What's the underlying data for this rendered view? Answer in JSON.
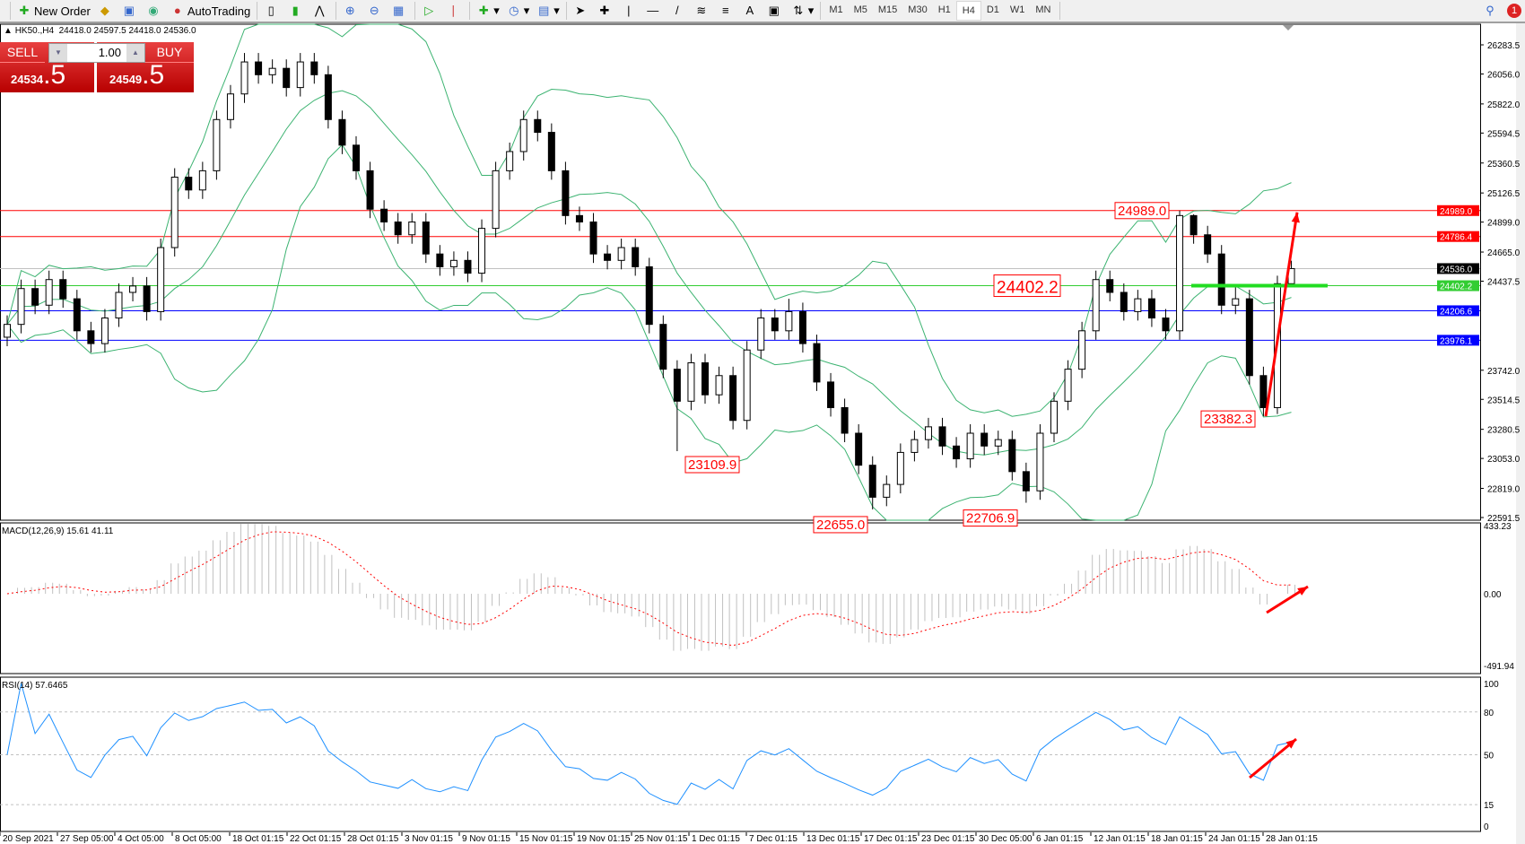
{
  "toolbar": {
    "new_order": "New Order",
    "auto_trading": "AutoTrading",
    "periods": [
      "M1",
      "M5",
      "M15",
      "M30",
      "H1",
      "H4",
      "D1",
      "W1",
      "MN"
    ],
    "active_period": "H4",
    "text_tool": "A",
    "notification_count": "1"
  },
  "header": {
    "symbol": "HK50.,H4",
    "ohlc": "24418.0 24597.5 24418.0 24536.0"
  },
  "trade_panel": {
    "sell_label": "SELL",
    "buy_label": "BUY",
    "lot": "1.00",
    "sell_price_main": "24534",
    "sell_price_big": ".5",
    "buy_price_main": "24549",
    "buy_price_big": ".5"
  },
  "colors": {
    "bullish_body": "#ffffff",
    "bearish_body": "#000000",
    "bands": "#3cb371",
    "macd_signal": "#ff0000",
    "macd_hist": "#c0c0c0",
    "rsi": "#1e90ff",
    "resistance": "#ff0000",
    "support": "#0000ff",
    "pivot": "#32cd32",
    "bid": "#c0c0c0"
  },
  "chart_data": [
    {
      "type": "candlestick",
      "title": "HK50.,H4",
      "price_axis_ticks": [
        26283.5,
        26056.0,
        25822.0,
        25594.5,
        25360.5,
        25126.5,
        24899.0,
        24665.0,
        24437.5,
        23742.0,
        23514.5,
        23280.5,
        23053.0,
        22819.0,
        22591.5
      ],
      "ylim": [
        22591.5,
        26283.5
      ],
      "time_axis_ticks": [
        "20 Sep 2021",
        "27 Sep 05:00",
        "4 Oct 05:00",
        "8 Oct 05:00",
        "18 Oct 01:15",
        "22 Oct 01:15",
        "28 Oct 01:15",
        "3 Nov 01:15",
        "9 Nov 01:15",
        "15 Nov 01:15",
        "19 Nov 01:15",
        "25 Nov 01:15",
        "1 Dec 01:15",
        "7 Dec 01:15",
        "13 Dec 01:15",
        "17 Dec 01:15",
        "23 Dec 01:15",
        "30 Dec 05:00",
        "6 Jan 01:15",
        "12 Jan 01:15",
        "18 Jan 01:15",
        "24 Jan 01:15",
        "28 Jan 01:15"
      ],
      "ohlc": [
        [
          24000,
          24170,
          23930,
          24100
        ],
        [
          24100,
          24450,
          24030,
          24380
        ],
        [
          24380,
          24450,
          24180,
          24250
        ],
        [
          24250,
          24520,
          24180,
          24450
        ],
        [
          24450,
          24520,
          24230,
          24300
        ],
        [
          24300,
          24370,
          23980,
          24050
        ],
        [
          24050,
          24120,
          23880,
          23950
        ],
        [
          23950,
          24220,
          23880,
          24150
        ],
        [
          24150,
          24420,
          24080,
          24350
        ],
        [
          24350,
          24470,
          24280,
          24400
        ],
        [
          24400,
          24470,
          24130,
          24200
        ],
        [
          24200,
          24770,
          24130,
          24700
        ],
        [
          24700,
          25320,
          24630,
          25250
        ],
        [
          25250,
          25320,
          25080,
          25150
        ],
        [
          25150,
          25370,
          25080,
          25300
        ],
        [
          25300,
          25770,
          25230,
          25700
        ],
        [
          25700,
          25970,
          25630,
          25900
        ],
        [
          25900,
          26220,
          25830,
          26150
        ],
        [
          26150,
          26220,
          25980,
          26050
        ],
        [
          26050,
          26170,
          25980,
          26100
        ],
        [
          26100,
          26170,
          25880,
          25950
        ],
        [
          25950,
          26220,
          25880,
          26150
        ],
        [
          26150,
          26220,
          25980,
          26050
        ],
        [
          26050,
          26120,
          25630,
          25700
        ],
        [
          25700,
          25770,
          25430,
          25500
        ],
        [
          25500,
          25570,
          25230,
          25300
        ],
        [
          25300,
          25370,
          24930,
          25000
        ],
        [
          25000,
          25070,
          24830,
          24900
        ],
        [
          24900,
          24970,
          24730,
          24800
        ],
        [
          24800,
          24970,
          24730,
          24900
        ],
        [
          24900,
          24970,
          24580,
          24650
        ],
        [
          24650,
          24720,
          24480,
          24550
        ],
        [
          24550,
          24670,
          24480,
          24600
        ],
        [
          24600,
          24670,
          24430,
          24500
        ],
        [
          24500,
          24920,
          24430,
          24850
        ],
        [
          24850,
          25370,
          24780,
          25300
        ],
        [
          25300,
          25520,
          25230,
          25450
        ],
        [
          25450,
          25770,
          25380,
          25700
        ],
        [
          25700,
          25770,
          25530,
          25600
        ],
        [
          25600,
          25670,
          25230,
          25300
        ],
        [
          25300,
          25370,
          24880,
          24950
        ],
        [
          24950,
          25020,
          24830,
          24900
        ],
        [
          24900,
          24970,
          24580,
          24650
        ],
        [
          24650,
          24720,
          24530,
          24600
        ],
        [
          24600,
          24770,
          24530,
          24700
        ],
        [
          24700,
          24770,
          24480,
          24550
        ],
        [
          24550,
          24620,
          24030,
          24100
        ],
        [
          24100,
          24170,
          23680,
          23750
        ],
        [
          23750,
          23820,
          23109.9,
          23500
        ],
        [
          23500,
          23870,
          23430,
          23800
        ],
        [
          23800,
          23870,
          23480,
          23550
        ],
        [
          23550,
          23770,
          23480,
          23700
        ],
        [
          23700,
          23770,
          23280,
          23350
        ],
        [
          23350,
          23970,
          23280,
          23900
        ],
        [
          23900,
          24220,
          23830,
          24150
        ],
        [
          24150,
          24220,
          23980,
          24050
        ],
        [
          24050,
          24300,
          23980,
          24200
        ],
        [
          24200,
          24270,
          23880,
          23950
        ],
        [
          23950,
          24020,
          23580,
          23650
        ],
        [
          23650,
          23720,
          23380,
          23450
        ],
        [
          23450,
          23520,
          23180,
          23250
        ],
        [
          23250,
          23320,
          22930,
          23000
        ],
        [
          23000,
          23070,
          22655.0,
          22750
        ],
        [
          22750,
          22920,
          22680,
          22850
        ],
        [
          22850,
          23170,
          22780,
          23100
        ],
        [
          23100,
          23270,
          23030,
          23200
        ],
        [
          23200,
          23370,
          23130,
          23300
        ],
        [
          23300,
          23370,
          23080,
          23150
        ],
        [
          23150,
          23220,
          22980,
          23050
        ],
        [
          23050,
          23320,
          22980,
          23250
        ],
        [
          23250,
          23320,
          23080,
          23150
        ],
        [
          23150,
          23270,
          23080,
          23200
        ],
        [
          23200,
          23270,
          22880,
          22950
        ],
        [
          22950,
          23020,
          22706.9,
          22800
        ],
        [
          22800,
          23320,
          22730,
          23250
        ],
        [
          23250,
          23570,
          23180,
          23500
        ],
        [
          23500,
          23820,
          23430,
          23750
        ],
        [
          23750,
          24120,
          23680,
          24050
        ],
        [
          24050,
          24520,
          23980,
          24450
        ],
        [
          24450,
          24520,
          24280,
          24350
        ],
        [
          24350,
          24420,
          24130,
          24200
        ],
        [
          24200,
          24370,
          24130,
          24300
        ],
        [
          24300,
          24370,
          24080,
          24150
        ],
        [
          24150,
          24220,
          23980,
          24050
        ],
        [
          24050,
          24989.0,
          23980,
          24950
        ],
        [
          24950,
          24960,
          24730,
          24800
        ],
        [
          24800,
          24870,
          24580,
          24650
        ],
        [
          24650,
          24720,
          24180,
          24250
        ],
        [
          24250,
          24400,
          24180,
          24300
        ],
        [
          24300,
          24370,
          23630,
          23700
        ],
        [
          23700,
          23770,
          23382.3,
          23450
        ],
        [
          23450,
          24480,
          23400,
          24418
        ],
        [
          24418.0,
          24597.5,
          24418.0,
          24536.0
        ]
      ],
      "horizontal_levels": [
        {
          "price": 24989.0,
          "label": "24989.0",
          "color": "#ff0000"
        },
        {
          "price": 24786.4,
          "label": "24786.4",
          "color": "#ff0000"
        },
        {
          "price": 24536.0,
          "label": "24536.0",
          "color": "#000000",
          "line": "#c0c0c0"
        },
        {
          "price": 24402.2,
          "label": "24402.2",
          "color": "#32cd32"
        },
        {
          "price": 24206.6,
          "label": "24206.6",
          "color": "#0000ff"
        },
        {
          "price": 23976.1,
          "label": "23976.1",
          "color": "#0000ff"
        }
      ],
      "annotations": [
        {
          "text": "24989.0",
          "price": 24989.0
        },
        {
          "text": "24402.2",
          "price": 24402.2
        },
        {
          "text": "23109.9",
          "price": 23109.9
        },
        {
          "text": "22655.0",
          "price": 22655.0
        },
        {
          "text": "22706.9",
          "price": 22706.9
        },
        {
          "text": "23382.3",
          "price": 23382.3
        }
      ],
      "overlays": [
        "bollinger-bands"
      ],
      "arrow": {
        "from_price": 23382.3,
        "to_price": 24989.0,
        "direction": "up"
      }
    },
    {
      "type": "macd",
      "label": "MACD(12,26,9) 15.61 41.11",
      "ylim": [
        -491.94,
        433.23
      ],
      "axis_ticks": [
        "433.23",
        "0.00",
        "-491.94"
      ],
      "arrow": {
        "direction": "up"
      }
    },
    {
      "type": "rsi",
      "label": "RSI(14) 57.6465",
      "ylim": [
        0,
        100
      ],
      "levels": [
        80,
        50,
        15
      ],
      "axis_ticks": [
        "100",
        "80",
        "50",
        "15",
        "0"
      ],
      "arrow": {
        "direction": "up"
      }
    }
  ]
}
